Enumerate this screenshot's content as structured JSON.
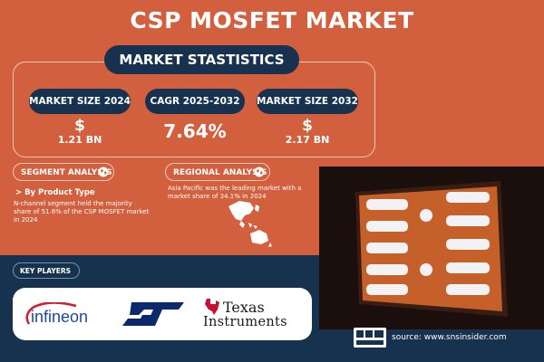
{
  "title": "CSP MOSFET MARKET",
  "stats": {
    "banner": "MARKET STASTISTICS",
    "market_size_2024_label": "MARKET SIZE 2024",
    "market_size_2024_symbol": "$",
    "market_size_2024_value": "1.21 BN",
    "cagr_label": "CAGR 2025-2032",
    "cagr_value": "7.64%",
    "market_size_2032_label": "MARKET SIZE 2032",
    "market_size_2032_symbol": "$",
    "market_size_2032_value": "2.17 BN"
  },
  "segment": {
    "heading": "SEGMENT ANALYSIS",
    "subheading": "> By Product Type",
    "text": "N-channel segment held the majority share of 51.6% of the CSP MOSFET market in 2024"
  },
  "regional": {
    "heading": "REGIONAL ANALYSIS",
    "text": "Asia Pacific was the leading market with a market share of 34.1% in 2024"
  },
  "key_players": {
    "heading": "KEY PLAYERS",
    "logos": {
      "infineon": "infineon",
      "ti_line1": "Texas",
      "ti_line2": "Instruments"
    }
  },
  "source": "source: www.snsinsider.com",
  "colors": {
    "background": "#d2603f",
    "navy": "#16324f",
    "frame": "#f3c9b8"
  }
}
